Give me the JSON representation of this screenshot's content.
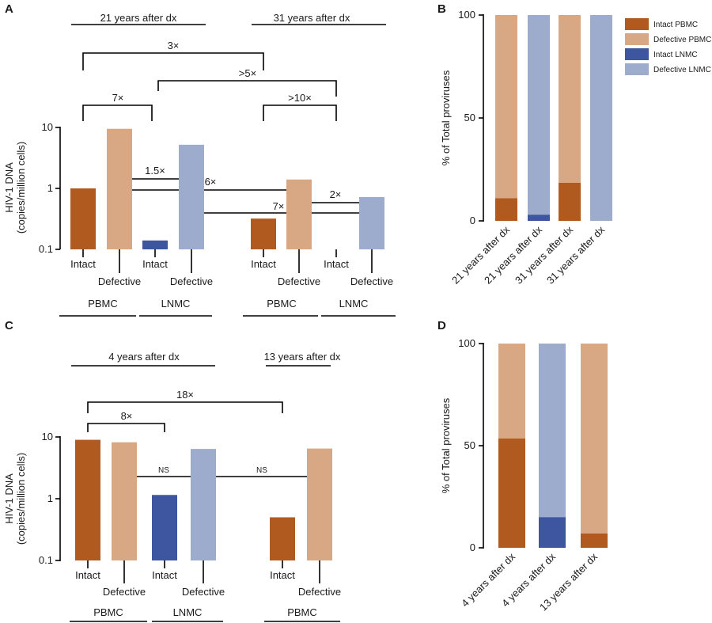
{
  "colors": {
    "intact_pbmc": "#b05a20",
    "defective_pbmc": "#d7a883",
    "intact_lnmc": "#3e55a0",
    "defective_lnmc": "#9dabcd"
  },
  "panels": {
    "A": "A",
    "B": "B",
    "C": "C",
    "D": "D"
  },
  "chart_data": [
    {
      "panel": "A",
      "type": "bar",
      "yscale": "log",
      "ylim": [
        0.1,
        10
      ],
      "ylabel": "HIV-1 DNA",
      "ylabel2": "(copies/million cells)",
      "yticks": [
        "0.1",
        "1",
        "10"
      ],
      "groups": [
        "21 years after dx",
        "31 years after dx"
      ],
      "tissues": [
        "PBMC",
        "LNMC",
        "PBMC",
        "LNMC"
      ],
      "categories": [
        "Intact",
        "Defective",
        "Intact",
        "Defective",
        "Intact",
        "Defective",
        "Intact",
        "Defective"
      ],
      "values": [
        1.0,
        9.5,
        0.14,
        5.2,
        0.32,
        1.4,
        0,
        0.72
      ],
      "series_keys": [
        "intact_pbmc",
        "defective_pbmc",
        "intact_lnmc",
        "defective_lnmc",
        "intact_pbmc",
        "defective_pbmc",
        "intact_lnmc",
        "defective_lnmc"
      ],
      "comparisons": [
        "3×",
        ">5×",
        "7×",
        ">10×",
        "1.5×",
        "6×",
        "2×",
        "7×"
      ]
    },
    {
      "panel": "B",
      "type": "bar",
      "stacked": true,
      "ylabel": "% of Total proviruses",
      "ylim": [
        0,
        100
      ],
      "yticks": [
        "0",
        "50",
        "100"
      ],
      "categories": [
        "21 years after dx",
        "21 years after dx",
        "31 years after dx",
        "31 years after dx"
      ],
      "series": [
        {
          "name": "Intact",
          "values": [
            11,
            3,
            18.5,
            0
          ]
        },
        {
          "name": "Defective",
          "values": [
            89,
            97,
            81.5,
            100
          ]
        }
      ],
      "bar_tissue": [
        "pbmc",
        "lnmc",
        "pbmc",
        "lnmc"
      ],
      "legend": [
        "Intact PBMC",
        "Defective PBMC",
        "Intact LNMC",
        "Defective LNMC"
      ],
      "legend_placement": "top-right"
    },
    {
      "panel": "C",
      "type": "bar",
      "yscale": "log",
      "ylim": [
        0.1,
        10
      ],
      "ylabel": "HIV-1 DNA",
      "ylabel2": "(copies/million cells)",
      "yticks": [
        "0.1",
        "1",
        "10"
      ],
      "groups": [
        "4 years after dx",
        "13 years after dx"
      ],
      "tissues": [
        "PBMC",
        "LNMC",
        "PBMC"
      ],
      "categories": [
        "Intact",
        "Defective",
        "Intact",
        "Defective",
        "Intact",
        "Defective"
      ],
      "values": [
        9.0,
        8.2,
        1.15,
        6.4,
        0.5,
        6.5
      ],
      "series_keys": [
        "intact_pbmc",
        "defective_pbmc",
        "intact_lnmc",
        "defective_lnmc",
        "intact_pbmc",
        "defective_pbmc"
      ],
      "comparisons": [
        "18×",
        "8×",
        "NS",
        "NS"
      ]
    },
    {
      "panel": "D",
      "type": "bar",
      "stacked": true,
      "ylabel": "% of Total proviruses",
      "ylim": [
        0,
        100
      ],
      "yticks": [
        "0",
        "50",
        "100"
      ],
      "categories": [
        "4 years after dx",
        "4 years after dx",
        "13 years after dx"
      ],
      "series": [
        {
          "name": "Intact",
          "values": [
            53.5,
            15,
            7
          ]
        },
        {
          "name": "Defective",
          "values": [
            46.5,
            85,
            93
          ]
        }
      ],
      "bar_tissue": [
        "pbmc",
        "lnmc",
        "pbmc"
      ]
    }
  ]
}
